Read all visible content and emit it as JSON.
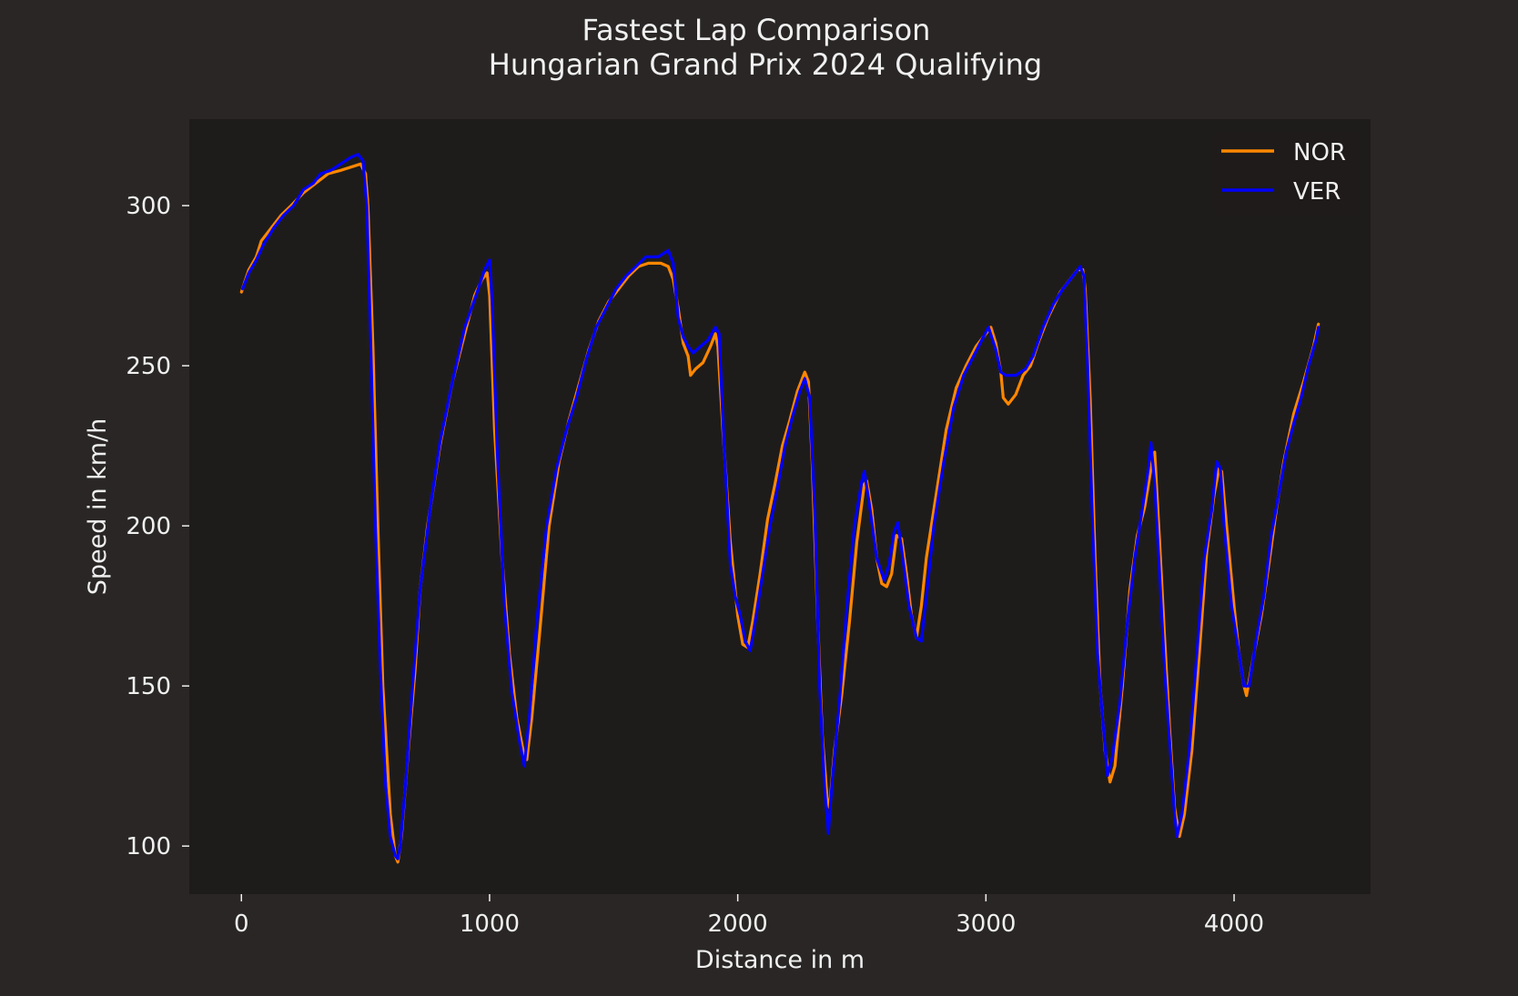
{
  "chart_data": {
    "type": "line",
    "title": "Fastest Lap Comparison",
    "subtitle": "Hungarian Grand Prix 2024 Qualifying",
    "xlabel": "Distance in m",
    "ylabel": "Speed in km/h",
    "xlim": [
      -210,
      4550
    ],
    "ylim": [
      85,
      327
    ],
    "xticks": [
      0,
      1000,
      2000,
      3000,
      4000
    ],
    "xtick_labels": [
      "0",
      "1000",
      "2000",
      "3000",
      "4000"
    ],
    "yticks": [
      100,
      150,
      200,
      250,
      300
    ],
    "ytick_labels": [
      "100",
      "150",
      "200",
      "250",
      "300"
    ],
    "grid": false,
    "legend_position": "top-right",
    "colors": {
      "background": "#292625",
      "plot_background": "#1e1c1b",
      "text": "#f0f0f0"
    },
    "series": [
      {
        "name": "NOR",
        "color": "#ff8700",
        "points": [
          [
            0,
            273
          ],
          [
            30,
            280
          ],
          [
            60,
            284
          ],
          [
            80,
            289
          ],
          [
            120,
            293
          ],
          [
            160,
            297
          ],
          [
            200,
            300
          ],
          [
            250,
            304
          ],
          [
            300,
            307
          ],
          [
            350,
            310
          ],
          [
            400,
            311
          ],
          [
            440,
            312
          ],
          [
            480,
            313
          ],
          [
            500,
            310
          ],
          [
            510,
            300
          ],
          [
            530,
            256
          ],
          [
            550,
            200
          ],
          [
            570,
            150
          ],
          [
            600,
            110
          ],
          [
            620,
            97
          ],
          [
            630,
            95
          ],
          [
            645,
            103
          ],
          [
            670,
            128
          ],
          [
            700,
            155
          ],
          [
            720,
            180
          ],
          [
            750,
            200
          ],
          [
            800,
            225
          ],
          [
            850,
            245
          ],
          [
            900,
            260
          ],
          [
            940,
            272
          ],
          [
            970,
            277
          ],
          [
            990,
            279
          ],
          [
            1000,
            272
          ],
          [
            1020,
            230
          ],
          [
            1050,
            190
          ],
          [
            1080,
            160
          ],
          [
            1110,
            140
          ],
          [
            1140,
            128
          ],
          [
            1150,
            127
          ],
          [
            1170,
            140
          ],
          [
            1200,
            165
          ],
          [
            1240,
            200
          ],
          [
            1280,
            220
          ],
          [
            1320,
            233
          ],
          [
            1360,
            244
          ],
          [
            1400,
            255
          ],
          [
            1440,
            264
          ],
          [
            1480,
            270
          ],
          [
            1520,
            274
          ],
          [
            1560,
            278
          ],
          [
            1600,
            281
          ],
          [
            1640,
            282
          ],
          [
            1690,
            282
          ],
          [
            1720,
            281
          ],
          [
            1740,
            277
          ],
          [
            1760,
            268
          ],
          [
            1780,
            257
          ],
          [
            1800,
            253
          ],
          [
            1810,
            247
          ],
          [
            1830,
            249
          ],
          [
            1860,
            251
          ],
          [
            1890,
            256
          ],
          [
            1910,
            260
          ],
          [
            1920,
            256
          ],
          [
            1940,
            230
          ],
          [
            1970,
            195
          ],
          [
            2000,
            172
          ],
          [
            2020,
            163
          ],
          [
            2040,
            162
          ],
          [
            2060,
            170
          ],
          [
            2090,
            185
          ],
          [
            2120,
            202
          ],
          [
            2150,
            213
          ],
          [
            2180,
            225
          ],
          [
            2210,
            233
          ],
          [
            2240,
            242
          ],
          [
            2270,
            248
          ],
          [
            2285,
            245
          ],
          [
            2300,
            220
          ],
          [
            2320,
            175
          ],
          [
            2340,
            135
          ],
          [
            2360,
            115
          ],
          [
            2370,
            112
          ],
          [
            2390,
            130
          ],
          [
            2420,
            148
          ],
          [
            2450,
            170
          ],
          [
            2480,
            195
          ],
          [
            2510,
            213
          ],
          [
            2520,
            214
          ],
          [
            2540,
            205
          ],
          [
            2560,
            190
          ],
          [
            2580,
            182
          ],
          [
            2600,
            181
          ],
          [
            2620,
            185
          ],
          [
            2640,
            197
          ],
          [
            2660,
            196
          ],
          [
            2680,
            185
          ],
          [
            2700,
            172
          ],
          [
            2720,
            165
          ],
          [
            2740,
            175
          ],
          [
            2760,
            190
          ],
          [
            2800,
            210
          ],
          [
            2840,
            230
          ],
          [
            2880,
            243
          ],
          [
            2920,
            250
          ],
          [
            2960,
            256
          ],
          [
            3000,
            260
          ],
          [
            3020,
            262
          ],
          [
            3040,
            257
          ],
          [
            3060,
            248
          ],
          [
            3070,
            240
          ],
          [
            3090,
            238
          ],
          [
            3120,
            241
          ],
          [
            3150,
            247
          ],
          [
            3180,
            250
          ],
          [
            3210,
            257
          ],
          [
            3250,
            265
          ],
          [
            3300,
            273
          ],
          [
            3340,
            277
          ],
          [
            3370,
            280
          ],
          [
            3390,
            280
          ],
          [
            3400,
            274
          ],
          [
            3420,
            240
          ],
          [
            3440,
            190
          ],
          [
            3460,
            150
          ],
          [
            3480,
            130
          ],
          [
            3500,
            120
          ],
          [
            3520,
            125
          ],
          [
            3550,
            150
          ],
          [
            3580,
            180
          ],
          [
            3610,
            197
          ],
          [
            3640,
            206
          ],
          [
            3670,
            220
          ],
          [
            3680,
            223
          ],
          [
            3700,
            195
          ],
          [
            3720,
            165
          ],
          [
            3740,
            137
          ],
          [
            3760,
            112
          ],
          [
            3780,
            103
          ],
          [
            3800,
            110
          ],
          [
            3830,
            130
          ],
          [
            3860,
            160
          ],
          [
            3890,
            192
          ],
          [
            3920,
            210
          ],
          [
            3940,
            218
          ],
          [
            3950,
            217
          ],
          [
            3970,
            200
          ],
          [
            4000,
            175
          ],
          [
            4020,
            160
          ],
          [
            4040,
            150
          ],
          [
            4050,
            147
          ],
          [
            4080,
            160
          ],
          [
            4110,
            172
          ],
          [
            4140,
            188
          ],
          [
            4170,
            205
          ],
          [
            4200,
            220
          ],
          [
            4240,
            235
          ],
          [
            4280,
            245
          ],
          [
            4320,
            256
          ],
          [
            4340,
            263
          ]
        ]
      },
      {
        "name": "VER",
        "color": "#0000ff",
        "points": [
          [
            5,
            274
          ],
          [
            30,
            279
          ],
          [
            60,
            283
          ],
          [
            90,
            288
          ],
          [
            130,
            293
          ],
          [
            170,
            297
          ],
          [
            210,
            300
          ],
          [
            250,
            305
          ],
          [
            290,
            307
          ],
          [
            320,
            310
          ],
          [
            360,
            311
          ],
          [
            400,
            313
          ],
          [
            440,
            315
          ],
          [
            470,
            316
          ],
          [
            490,
            314
          ],
          [
            505,
            300
          ],
          [
            520,
            260
          ],
          [
            540,
            200
          ],
          [
            560,
            155
          ],
          [
            580,
            120
          ],
          [
            600,
            103
          ],
          [
            620,
            97
          ],
          [
            630,
            96
          ],
          [
            640,
            100
          ],
          [
            660,
            118
          ],
          [
            690,
            150
          ],
          [
            720,
            180
          ],
          [
            760,
            205
          ],
          [
            800,
            226
          ],
          [
            850,
            245
          ],
          [
            900,
            262
          ],
          [
            950,
            273
          ],
          [
            980,
            280
          ],
          [
            1000,
            283
          ],
          [
            1010,
            270
          ],
          [
            1030,
            225
          ],
          [
            1060,
            175
          ],
          [
            1090,
            148
          ],
          [
            1120,
            133
          ],
          [
            1140,
            125
          ],
          [
            1160,
            140
          ],
          [
            1190,
            170
          ],
          [
            1230,
            200
          ],
          [
            1270,
            218
          ],
          [
            1310,
            230
          ],
          [
            1350,
            240
          ],
          [
            1390,
            252
          ],
          [
            1430,
            262
          ],
          [
            1470,
            268
          ],
          [
            1510,
            274
          ],
          [
            1550,
            278
          ],
          [
            1590,
            281
          ],
          [
            1630,
            284
          ],
          [
            1680,
            284
          ],
          [
            1720,
            286
          ],
          [
            1740,
            282
          ],
          [
            1760,
            265
          ],
          [
            1780,
            259
          ],
          [
            1800,
            256
          ],
          [
            1820,
            254
          ],
          [
            1850,
            256
          ],
          [
            1880,
            258
          ],
          [
            1910,
            262
          ],
          [
            1925,
            260
          ],
          [
            1945,
            225
          ],
          [
            1970,
            188
          ],
          [
            1990,
            178
          ],
          [
            2010,
            172
          ],
          [
            2030,
            164
          ],
          [
            2050,
            161
          ],
          [
            2070,
            170
          ],
          [
            2100,
            185
          ],
          [
            2130,
            200
          ],
          [
            2160,
            212
          ],
          [
            2190,
            225
          ],
          [
            2220,
            234
          ],
          [
            2250,
            242
          ],
          [
            2270,
            246
          ],
          [
            2290,
            240
          ],
          [
            2310,
            205
          ],
          [
            2330,
            150
          ],
          [
            2350,
            118
          ],
          [
            2365,
            104
          ],
          [
            2380,
            120
          ],
          [
            2410,
            145
          ],
          [
            2440,
            175
          ],
          [
            2470,
            200
          ],
          [
            2500,
            214
          ],
          [
            2510,
            217
          ],
          [
            2530,
            207
          ],
          [
            2560,
            190
          ],
          [
            2590,
            183
          ],
          [
            2610,
            188
          ],
          [
            2630,
            198
          ],
          [
            2645,
            201
          ],
          [
            2660,
            193
          ],
          [
            2690,
            175
          ],
          [
            2720,
            165
          ],
          [
            2740,
            164
          ],
          [
            2760,
            178
          ],
          [
            2790,
            200
          ],
          [
            2830,
            220
          ],
          [
            2870,
            237
          ],
          [
            2910,
            247
          ],
          [
            2950,
            253
          ],
          [
            2990,
            259
          ],
          [
            3010,
            262
          ],
          [
            3040,
            255
          ],
          [
            3060,
            248
          ],
          [
            3080,
            247
          ],
          [
            3120,
            247
          ],
          [
            3160,
            249
          ],
          [
            3190,
            253
          ],
          [
            3230,
            262
          ],
          [
            3270,
            269
          ],
          [
            3310,
            274
          ],
          [
            3350,
            278
          ],
          [
            3380,
            281
          ],
          [
            3395,
            278
          ],
          [
            3410,
            250
          ],
          [
            3430,
            200
          ],
          [
            3450,
            160
          ],
          [
            3470,
            140
          ],
          [
            3490,
            122
          ],
          [
            3510,
            128
          ],
          [
            3540,
            145
          ],
          [
            3570,
            170
          ],
          [
            3600,
            190
          ],
          [
            3630,
            205
          ],
          [
            3655,
            218
          ],
          [
            3665,
            226
          ],
          [
            3680,
            213
          ],
          [
            3700,
            185
          ],
          [
            3720,
            155
          ],
          [
            3740,
            133
          ],
          [
            3760,
            110
          ],
          [
            3770,
            103
          ],
          [
            3790,
            110
          ],
          [
            3820,
            130
          ],
          [
            3850,
            160
          ],
          [
            3880,
            190
          ],
          [
            3910,
            205
          ],
          [
            3930,
            220
          ],
          [
            3945,
            218
          ],
          [
            3960,
            200
          ],
          [
            3990,
            175
          ],
          [
            4020,
            160
          ],
          [
            4040,
            150
          ],
          [
            4060,
            150
          ],
          [
            4090,
            165
          ],
          [
            4120,
            178
          ],
          [
            4150,
            197
          ],
          [
            4180,
            210
          ],
          [
            4210,
            223
          ],
          [
            4240,
            232
          ],
          [
            4270,
            240
          ],
          [
            4300,
            250
          ],
          [
            4330,
            258
          ],
          [
            4340,
            262
          ]
        ]
      }
    ]
  }
}
